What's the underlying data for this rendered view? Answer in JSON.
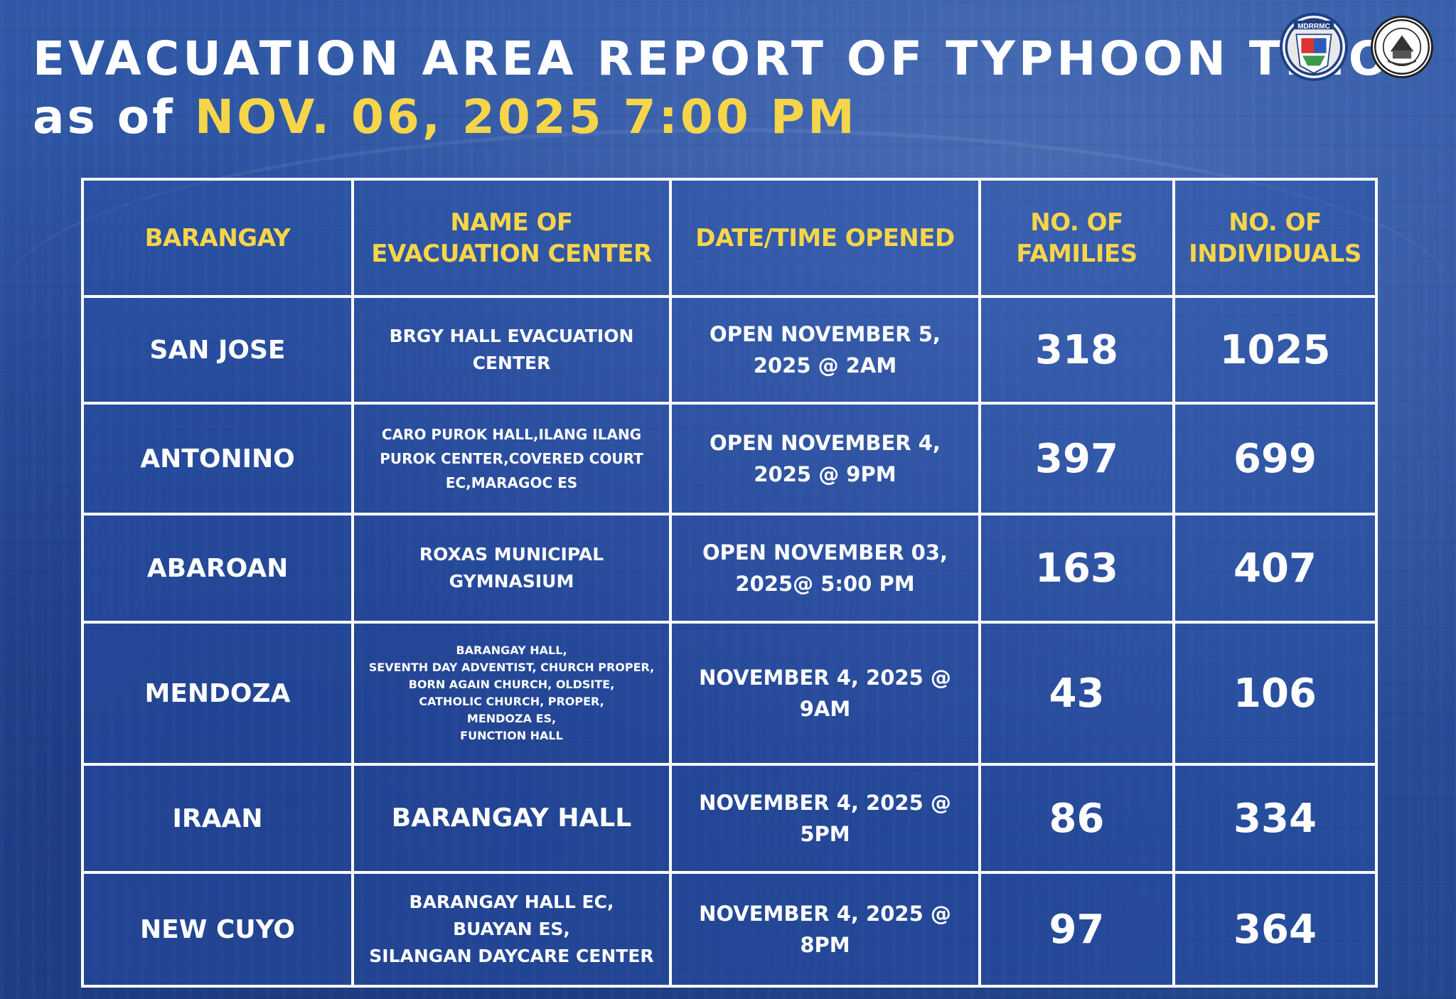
{
  "header": {
    "title": "EVACUATION AREA REPORT OF TYPHOON TINO",
    "as_of_prefix": "as of ",
    "as_of_date": "NOV. 06, 2025 7:00 PM"
  },
  "logos": {
    "mdrrmc_text": "MDRRMC"
  },
  "colors": {
    "accent_yellow": "#f6d54a",
    "background_blue": "#2a4f9c",
    "text_white": "#ffffff"
  },
  "table": {
    "headers": {
      "barangay": "BARANGAY",
      "center": "NAME OF\nEVACUATION CENTER",
      "date": "DATE/TIME OPENED",
      "families": "NO. OF\nFAMILIES",
      "individuals": "NO. OF\nINDIVIDUALS"
    },
    "rows": [
      {
        "barangay": "SAN JOSE",
        "center": "BRGY HALL EVACUATION\nCENTER",
        "date": "OPEN NOVEMBER 5,\n2025 @ 2AM",
        "families": "318",
        "individuals": "1025"
      },
      {
        "barangay": "ANTONINO",
        "center": "CARO PUROK HALL,ILANG ILANG\nPUROK CENTER,COVERED COURT\nEC,MARAGOC ES",
        "date": "OPEN NOVEMBER 4,\n2025 @ 9PM",
        "families": "397",
        "individuals": "699"
      },
      {
        "barangay": "ABAROAN",
        "center": "ROXAS MUNICIPAL\nGYMNASIUM",
        "date": "OPEN NOVEMBER 03,\n2025@ 5:00 PM",
        "families": "163",
        "individuals": "407"
      },
      {
        "barangay": "MENDOZA",
        "center": "BARANGAY HALL,\nSEVENTH DAY ADVENTIST, CHURCH PROPER,\nBORN AGAIN CHURCH, OLDSITE,\nCATHOLIC CHURCH, PROPER,\nMENDOZA ES,\nFUNCTION HALL",
        "date": "NOVEMBER 4, 2025 @\n9AM",
        "families": "43",
        "individuals": "106"
      },
      {
        "barangay": "IRAAN",
        "center": "BARANGAY HALL",
        "date": "NOVEMBER 4, 2025 @\n5PM",
        "families": "86",
        "individuals": "334"
      },
      {
        "barangay": "NEW CUYO",
        "center": "BARANGAY HALL EC,\nBUAYAN ES,\nSILANGAN DAYCARE CENTER",
        "date": "NOVEMBER 4, 2025 @\n8PM",
        "families": "97",
        "individuals": "364"
      }
    ]
  }
}
